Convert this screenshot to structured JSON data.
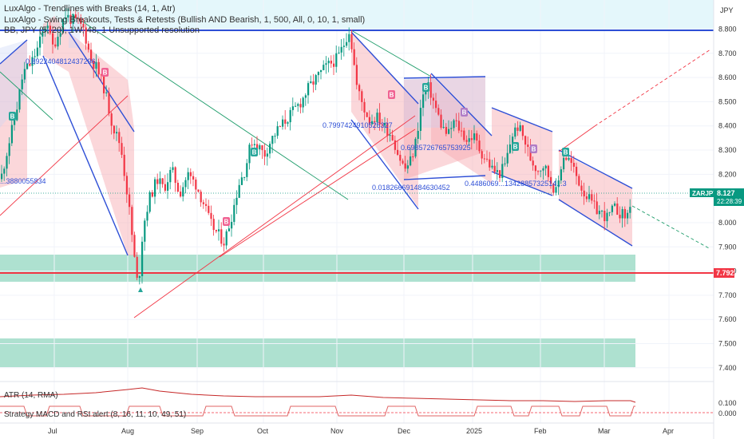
{
  "symbol": "ZARJPY",
  "currency": "JPY",
  "legend": {
    "line1": "LuxAlgo - Trendlines with Breaks (14, 1, Atr)",
    "line2": "LuxAlgo - Swing Breakouts, Tests & Retests (Bullish AND Bearish, 1, 500, All, 0, 10, 1, small)",
    "line3": "BB, JPY (5, 20), 1W, 48, 1 Unsupported resolution",
    "atr": "ATR (14, RMA)",
    "strategy": "Strategy MACD and RSI alert (8, 16, 11, 10, 49, 51)"
  },
  "price_badge": {
    "symbol": "ZARJPY",
    "value": "8.127",
    "countdown": "22:28:39"
  },
  "level_badge": "7.792",
  "colors": {
    "up": "#089981",
    "down": "#f23645",
    "blue": "#2962ff",
    "red": "#f23645",
    "zone": "#6cc9a9",
    "channel": "#f7a7ad"
  },
  "annotations": [
    "0.8922404812437296",
    "0.7997424910525327",
    "0.6985726765753925",
    "0.018266691484630452",
    "0.4486069...1342885732514...3",
    "...3880055834"
  ],
  "chart_data": {
    "type": "candlestick",
    "y_axis": {
      "ticks": [
        "8.800",
        "8.700",
        "8.600",
        "8.500",
        "8.400",
        "8.300",
        "8.200",
        "8.100",
        "8.000",
        "7.900",
        "7.800",
        "7.700",
        "7.600",
        "7.500",
        "7.400"
      ],
      "range": [
        7.33,
        8.96
      ]
    },
    "x_axis": {
      "ticks": [
        "Jul",
        "Aug",
        "Sep",
        "Oct",
        "Nov",
        "Dec",
        "2025",
        "Feb",
        "Mar",
        "Apr"
      ]
    },
    "atr_ticks": [
      "0.100",
      "0.000"
    ],
    "horizontal_lines": [
      8.795,
      7.792
    ],
    "zones": [
      [
        7.763,
        7.868
      ],
      [
        7.407,
        7.514
      ]
    ],
    "last_price": 8.127,
    "close_path": [
      [
        0,
        8.18
      ],
      [
        8,
        8.3
      ],
      [
        18,
        8.44
      ],
      [
        28,
        8.62
      ],
      [
        38,
        8.66
      ],
      [
        46,
        8.72
      ],
      [
        52,
        8.78
      ],
      [
        58,
        8.84
      ],
      [
        64,
        8.72
      ],
      [
        72,
        8.78
      ],
      [
        80,
        8.86
      ],
      [
        88,
        8.84
      ],
      [
        96,
        8.83
      ],
      [
        104,
        8.8
      ],
      [
        112,
        8.68
      ],
      [
        120,
        8.64
      ],
      [
        130,
        8.55
      ],
      [
        140,
        8.4
      ],
      [
        150,
        8.32
      ],
      [
        160,
        8.08
      ],
      [
        167,
        7.86
      ],
      [
        172,
        7.72
      ],
      [
        178,
        7.98
      ],
      [
        186,
        8.1
      ],
      [
        196,
        8.18
      ],
      [
        204,
        8.14
      ],
      [
        214,
        8.22
      ],
      [
        224,
        8.12
      ],
      [
        234,
        8.2
      ],
      [
        244,
        8.16
      ],
      [
        254,
        8.08
      ],
      [
        262,
        8.0
      ],
      [
        270,
        7.96
      ],
      [
        280,
        7.92
      ],
      [
        290,
        8.04
      ],
      [
        298,
        8.16
      ],
      [
        306,
        8.22
      ],
      [
        314,
        8.34
      ],
      [
        322,
        8.32
      ],
      [
        330,
        8.28
      ],
      [
        338,
        8.34
      ],
      [
        346,
        8.38
      ],
      [
        356,
        8.42
      ],
      [
        366,
        8.46
      ],
      [
        376,
        8.5
      ],
      [
        386,
        8.56
      ],
      [
        396,
        8.6
      ],
      [
        406,
        8.64
      ],
      [
        414,
        8.66
      ],
      [
        422,
        8.68
      ],
      [
        430,
        8.74
      ],
      [
        436,
        8.8
      ],
      [
        440,
        8.72
      ],
      [
        446,
        8.56
      ],
      [
        454,
        8.48
      ],
      [
        462,
        8.42
      ],
      [
        470,
        8.44
      ],
      [
        480,
        8.4
      ],
      [
        490,
        8.36
      ],
      [
        498,
        8.28
      ],
      [
        506,
        8.22
      ],
      [
        514,
        8.26
      ],
      [
        520,
        8.34
      ],
      [
        528,
        8.52
      ],
      [
        536,
        8.56
      ],
      [
        544,
        8.48
      ],
      [
        552,
        8.4
      ],
      [
        560,
        8.36
      ],
      [
        568,
        8.42
      ],
      [
        576,
        8.38
      ],
      [
        584,
        8.34
      ],
      [
        592,
        8.36
      ],
      [
        600,
        8.3
      ],
      [
        608,
        8.26
      ],
      [
        616,
        8.22
      ],
      [
        624,
        8.2
      ],
      [
        632,
        8.24
      ],
      [
        640,
        8.36
      ],
      [
        648,
        8.4
      ],
      [
        656,
        8.34
      ],
      [
        664,
        8.26
      ],
      [
        672,
        8.22
      ],
      [
        680,
        8.24
      ],
      [
        688,
        8.18
      ],
      [
        696,
        8.12
      ],
      [
        704,
        8.28
      ],
      [
        712,
        8.26
      ],
      [
        720,
        8.2
      ],
      [
        728,
        8.14
      ],
      [
        736,
        8.1
      ],
      [
        744,
        8.06
      ],
      [
        752,
        8.04
      ],
      [
        760,
        8.02
      ],
      [
        768,
        8.06
      ],
      [
        776,
        8.04
      ],
      [
        784,
        8.02
      ],
      [
        791,
        8.12
      ]
    ]
  }
}
